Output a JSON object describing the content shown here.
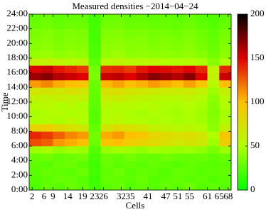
{
  "chart_data": {
    "type": "heatmap",
    "title": "Measured densities −2014−04−24",
    "xlabel": "Cells",
    "ylabel": "Time",
    "xbins": [
      1,
      5,
      9,
      13,
      17,
      21,
      25,
      29,
      33,
      37,
      41,
      45,
      49,
      53,
      57,
      61,
      65,
      69
    ],
    "ybins": [
      0,
      1,
      2,
      3,
      4,
      5,
      6,
      7,
      8,
      9,
      10,
      11,
      12,
      13,
      14,
      15,
      16,
      17,
      18,
      19,
      20,
      21,
      22,
      23,
      24
    ],
    "xlim": [
      1,
      69
    ],
    "ylim": [
      0,
      24
    ],
    "xticks": [
      2,
      6,
      9,
      14,
      19,
      23,
      26,
      32,
      35,
      41,
      47,
      51,
      55,
      61,
      65,
      68
    ],
    "yticks": [
      {
        "value": 0,
        "label": "0:00"
      },
      {
        "value": 2,
        "label": "2:00"
      },
      {
        "value": 4,
        "label": "4:00"
      },
      {
        "value": 6,
        "label": "6:00"
      },
      {
        "value": 8,
        "label": "8:00"
      },
      {
        "value": 10,
        "label": "10:00"
      },
      {
        "value": 12,
        "label": "12:00"
      },
      {
        "value": 14,
        "label": "14:00"
      },
      {
        "value": 16,
        "label": "16:00"
      },
      {
        "value": 18,
        "label": "18:00"
      },
      {
        "value": 20,
        "label": "20:00"
      },
      {
        "value": 22,
        "label": "22:00"
      },
      {
        "value": 24,
        "label": "24:00"
      }
    ],
    "zlim": [
      0,
      200
    ],
    "zticks": [
      0,
      50,
      100,
      150,
      200
    ],
    "colormap": [
      "#00ff00",
      "#b0ff00",
      "#ffc000",
      "#e00000",
      "#000000"
    ],
    "values": [
      [
        22,
        28,
        25,
        30,
        27,
        18,
        26,
        30,
        24,
        28,
        25,
        29,
        26,
        31,
        24,
        27,
        25
      ],
      [
        24,
        26,
        30,
        28,
        25,
        17,
        29,
        27,
        26,
        30,
        24,
        26,
        28,
        25,
        27,
        23,
        26
      ],
      [
        25,
        29,
        27,
        26,
        30,
        19,
        27,
        31,
        25,
        28,
        27,
        24,
        29,
        27,
        25,
        26,
        28
      ],
      [
        27,
        25,
        29,
        31,
        26,
        18,
        30,
        26,
        28,
        25,
        29,
        27,
        24,
        28,
        26,
        25,
        27
      ],
      [
        30,
        32,
        28,
        30,
        33,
        20,
        31,
        29,
        33,
        30,
        28,
        32,
        30,
        29,
        31,
        27,
        30
      ],
      [
        45,
        48,
        42,
        46,
        44,
        24,
        43,
        47,
        45,
        42,
        46,
        44,
        43,
        45,
        41,
        35,
        44
      ],
      [
        130,
        125,
        110,
        105,
        100,
        30,
        95,
        100,
        90,
        85,
        80,
        75,
        70,
        72,
        68,
        45,
        90
      ],
      [
        140,
        135,
        125,
        115,
        110,
        32,
        105,
        110,
        100,
        95,
        85,
        80,
        75,
        78,
        70,
        50,
        95
      ],
      [
        85,
        90,
        80,
        75,
        70,
        28,
        72,
        80,
        75,
        70,
        60,
        58,
        55,
        56,
        52,
        40,
        60
      ],
      [
        50,
        52,
        48,
        55,
        50,
        25,
        52,
        55,
        50,
        52,
        48,
        50,
        47,
        49,
        46,
        38,
        48
      ],
      [
        48,
        50,
        52,
        49,
        51,
        24,
        50,
        53,
        49,
        47,
        50,
        48,
        46,
        50,
        45,
        36,
        47
      ],
      [
        52,
        55,
        50,
        53,
        49,
        26,
        55,
        52,
        54,
        50,
        52,
        49,
        48,
        51,
        47,
        38,
        50
      ],
      [
        60,
        58,
        62,
        57,
        60,
        27,
        63,
        65,
        60,
        58,
        56,
        55,
        54,
        57,
        52,
        40,
        55
      ],
      [
        70,
        72,
        68,
        75,
        70,
        28,
        74,
        78,
        72,
        70,
        68,
        66,
        65,
        67,
        60,
        45,
        62
      ],
      [
        110,
        115,
        105,
        100,
        98,
        30,
        102,
        108,
        100,
        104,
        110,
        105,
        100,
        108,
        95,
        55,
        100
      ],
      [
        165,
        170,
        160,
        155,
        150,
        35,
        155,
        158,
        150,
        160,
        170,
        165,
        160,
        170,
        150,
        60,
        155
      ],
      [
        150,
        155,
        145,
        140,
        135,
        33,
        138,
        140,
        135,
        145,
        150,
        148,
        145,
        150,
        140,
        58,
        140
      ],
      [
        60,
        62,
        58,
        55,
        57,
        26,
        55,
        58,
        56,
        54,
        55,
        52,
        50,
        53,
        48,
        38,
        50
      ],
      [
        42,
        44,
        40,
        43,
        41,
        22,
        42,
        45,
        40,
        42,
        40,
        41,
        39,
        42,
        38,
        32,
        40
      ],
      [
        38,
        40,
        37,
        39,
        38,
        21,
        40,
        41,
        38,
        39,
        37,
        38,
        36,
        39,
        35,
        30,
        37
      ],
      [
        36,
        38,
        35,
        37,
        36,
        20,
        38,
        39,
        36,
        37,
        35,
        36,
        34,
        37,
        33,
        28,
        35
      ],
      [
        35,
        36,
        34,
        36,
        35,
        20,
        36,
        37,
        34,
        35,
        33,
        34,
        32,
        35,
        31,
        27,
        33
      ],
      [
        30,
        32,
        29,
        31,
        30,
        19,
        32,
        33,
        30,
        31,
        29,
        30,
        28,
        31,
        27,
        24,
        29
      ],
      [
        28,
        30,
        27,
        29,
        28,
        18,
        30,
        31,
        28,
        29,
        27,
        28,
        26,
        29,
        25,
        22,
        27
      ]
    ]
  }
}
